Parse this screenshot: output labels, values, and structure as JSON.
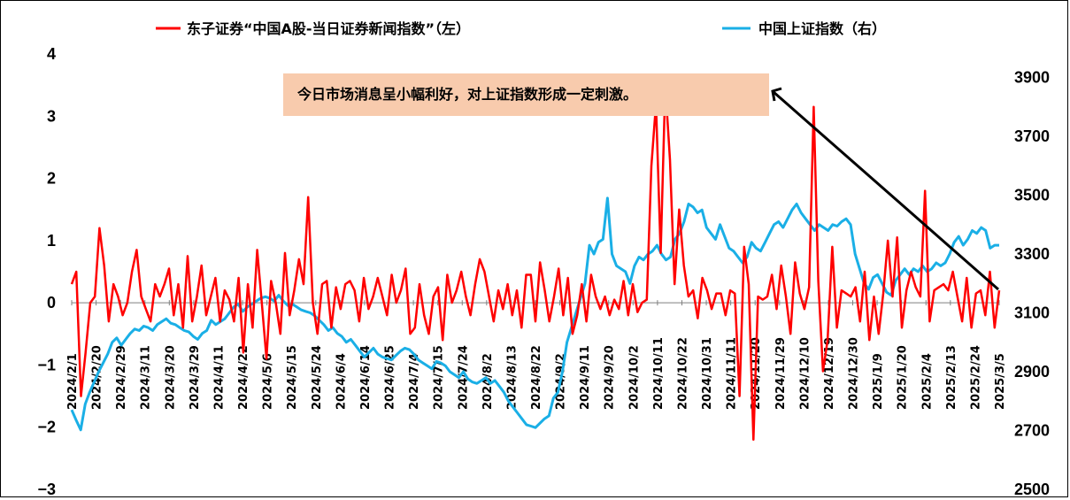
{
  "chart_data": {
    "type": "line",
    "legend": {
      "placement": "top",
      "items": [
        {
          "name": "东子证券“中国A股-当日证券新闻指数”（左）",
          "color": "#FF0000"
        },
        {
          "name": "中国上证指数（右）",
          "color": "#1AAFE6"
        }
      ]
    },
    "annotation": {
      "text": "今日市场消息呈小幅利好，对上证指数形成一定刺激。",
      "box_color": "#F8CBAD",
      "arrow_color": "#000000"
    },
    "left_axis": {
      "ylim": [
        -3,
        4
      ],
      "ticks": [
        "4",
        "3",
        "2",
        "1",
        "0",
        "−1",
        "−2",
        "−3"
      ],
      "values": [
        4,
        3,
        2,
        1,
        0,
        -1,
        -2,
        -3
      ]
    },
    "right_axis": {
      "ylim": [
        2500,
        3980
      ],
      "ticks": [
        "3900",
        "3700",
        "3500",
        "3300",
        "3100",
        "2900",
        "2700",
        "2500"
      ],
      "values": [
        3900,
        3700,
        3500,
        3300,
        3100,
        2900,
        2700,
        2500
      ]
    },
    "x_labels": [
      "2024/2/1",
      "2024/2/20",
      "2024/2/29",
      "2024/3/11",
      "2024/3/20",
      "2024/3/29",
      "2024/4/11",
      "2024/4/22",
      "2024/5/6",
      "2024/5/15",
      "2024/5/24",
      "2024/6/4",
      "2024/6/14",
      "2024/6/25",
      "2024/7/4",
      "2024/7/15",
      "2024/7/24",
      "2024/8/2",
      "2024/8/13",
      "2024/8/22",
      "2024/9/2",
      "2024/9/11",
      "2024/9/20",
      "2024/10/2",
      "2024/10/11",
      "2024/10/22",
      "2024/10/31",
      "2024/11/11",
      "2024/11/20",
      "2024/11/29",
      "2024/12/10",
      "2024/12/19",
      "2024/12/30",
      "2025/1/9",
      "2025/1/20",
      "2025/2/4",
      "2025/2/13",
      "2025/2/24",
      "2025/3/5"
    ],
    "series": [
      {
        "name": "东子证券“中国A股-当日证券新闻指数”（左）",
        "axis": "left",
        "color": "#FF0000",
        "values": [
          0.3,
          0.5,
          -1.5,
          -0.8,
          0,
          0.1,
          1.2,
          0.6,
          -0.3,
          0.3,
          0.1,
          -0.2,
          0,
          0.5,
          0.85,
          0.1,
          -0.1,
          -0.3,
          0.3,
          0.1,
          0.3,
          0.55,
          -0.2,
          0.3,
          -0.4,
          0.75,
          -0.3,
          0.1,
          0.6,
          -0.2,
          0.1,
          0.4,
          -0.3,
          0.2,
          0.05,
          -0.3,
          0.4,
          -0.8,
          0.3,
          -0.4,
          0.85,
          0,
          -0.9,
          0.35,
          0,
          -0.5,
          0.8,
          -0.2,
          0.2,
          0.7,
          0.3,
          1.7,
          0,
          -0.5,
          0.3,
          0.35,
          -0.4,
          0.25,
          -0.1,
          0.3,
          0.35,
          0.2,
          -0.3,
          0.4,
          -0.1,
          0.1,
          0.4,
          0.1,
          -0.2,
          0.45,
          0,
          0.2,
          0.55,
          -0.5,
          -0.4,
          0.3,
          -0.2,
          -0.5,
          0.1,
          0.25,
          -0.6,
          0.45,
          0,
          0.2,
          0.5,
          0.1,
          -0.2,
          0.3,
          0.7,
          0.5,
          0.1,
          -0.3,
          0.2,
          -0.1,
          0.3,
          -0.2,
          0.2,
          -0.4,
          0.45,
          0.45,
          -0.3,
          0.65,
          0.2,
          -0.3,
          0.1,
          0.55,
          -0.2,
          0.4,
          -0.5,
          -0.2,
          0.3,
          -0.3,
          0.45,
          0.1,
          -0.1,
          0.1,
          -0.2,
          0.05,
          -0.1,
          0.35,
          -0.2,
          0.3,
          -0.15,
          0,
          0.05,
          2.2,
          3.2,
          0.8,
          3.5,
          2.3,
          0.3,
          1.5,
          0.6,
          0.1,
          0.2,
          -0.25,
          0.4,
          0.2,
          -0.1,
          0.15,
          0.15,
          -0.2,
          0.2,
          0.15,
          -1.5,
          0.9,
          0.3,
          -2.2,
          0.1,
          0.05,
          0.1,
          0.45,
          -0.1,
          0.6,
          0.1,
          -0.5,
          0.65,
          0.15,
          -0.1,
          0.25,
          3.15,
          0.35,
          -1.1,
          -0.6,
          0.9,
          -0.4,
          0.2,
          0.15,
          0.1,
          0.25,
          -0.3,
          0.5,
          -0.6,
          0.1,
          -0.5,
          0.15,
          1.0,
          0.1,
          1.05,
          -0.4,
          0.2,
          0.5,
          0.25,
          0.1,
          1.8,
          -0.3,
          0.2,
          0.25,
          0.3,
          0.2,
          0.5,
          0.1,
          -0.3,
          0.4,
          -0.4,
          0.15,
          0.2,
          -0.2,
          0.5,
          -0.4,
          0.2
        ]
      },
      {
        "name": "中国上证指数（右）",
        "axis": "right",
        "color": "#1AAFE6",
        "values": [
          2770,
          2735,
          2702,
          2790,
          2830,
          2865,
          2900,
          2930,
          2960,
          3000,
          3015,
          2990,
          3010,
          3030,
          3045,
          3040,
          3055,
          3050,
          3040,
          3060,
          3070,
          3080,
          3065,
          3060,
          3050,
          3040,
          3035,
          3020,
          3010,
          3030,
          3040,
          3075,
          3060,
          3070,
          3080,
          3100,
          3120,
          3130,
          3105,
          3120,
          3130,
          3140,
          3150,
          3155,
          3150,
          3140,
          3160,
          3140,
          3125,
          3130,
          3120,
          3110,
          3105,
          3100,
          3090,
          3075,
          3060,
          3040,
          3050,
          3030,
          3020,
          3000,
          3010,
          2990,
          2970,
          2950,
          2965,
          2980,
          2960,
          2950,
          2945,
          2940,
          2955,
          2970,
          2980,
          2975,
          2960,
          2940,
          2930,
          2920,
          2910,
          2935,
          2930,
          2920,
          2900,
          2890,
          2880,
          2900,
          2875,
          2865,
          2860,
          2870,
          2880,
          2860,
          2870,
          2850,
          2830,
          2800,
          2780,
          2760,
          2740,
          2720,
          2715,
          2710,
          2725,
          2740,
          2750,
          2810,
          2830,
          2900,
          3000,
          3050,
          3100,
          3150,
          3200,
          3330,
          3300,
          3340,
          3350,
          3490,
          3300,
          3260,
          3250,
          3240,
          3200,
          3260,
          3290,
          3280,
          3300,
          3310,
          3330,
          3300,
          3280,
          3290,
          3350,
          3370,
          3410,
          3470,
          3460,
          3440,
          3450,
          3390,
          3370,
          3350,
          3400,
          3360,
          3320,
          3310,
          3290,
          3270,
          3290,
          3340,
          3320,
          3310,
          3340,
          3370,
          3400,
          3410,
          3390,
          3420,
          3450,
          3470,
          3440,
          3420,
          3400,
          3380,
          3400,
          3390,
          3380,
          3400,
          3395,
          3410,
          3420,
          3400,
          3300,
          3250,
          3200,
          3180,
          3220,
          3230,
          3200,
          3170,
          3160,
          3210,
          3230,
          3250,
          3230,
          3250,
          3240,
          3260,
          3240,
          3250,
          3270,
          3260,
          3270,
          3300,
          3340,
          3360,
          3330,
          3350,
          3380,
          3370,
          3390,
          3380,
          3320,
          3330,
          3330
        ]
      }
    ]
  }
}
